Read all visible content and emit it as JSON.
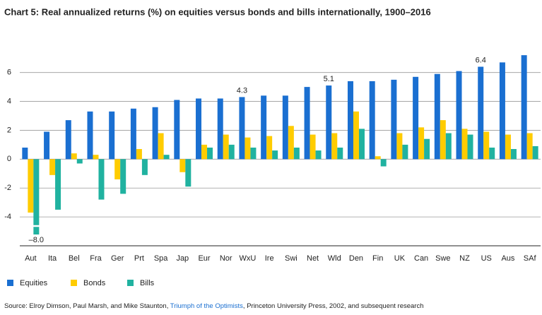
{
  "chart_data": {
    "type": "bar",
    "title": "Chart 5: Real annualized returns (%) on equities versus bonds and bills internationally, 1900–2016",
    "categories": [
      "Aut",
      "Ita",
      "Bel",
      "Fra",
      "Ger",
      "Prt",
      "Spa",
      "Jap",
      "Eur",
      "Nor",
      "WxU",
      "Ire",
      "Swi",
      "Net",
      "Wld",
      "Den",
      "Fin",
      "UK",
      "Can",
      "Swe",
      "NZ",
      "US",
      "Aus",
      "SAf"
    ],
    "series": [
      {
        "name": "Equities",
        "color": "#1a6fd1",
        "values": [
          0.8,
          1.9,
          2.7,
          3.3,
          3.3,
          3.5,
          3.6,
          4.1,
          4.2,
          4.2,
          4.3,
          4.4,
          4.4,
          5.0,
          5.1,
          5.4,
          5.4,
          5.5,
          5.7,
          5.9,
          6.1,
          6.4,
          6.7,
          7.2
        ],
        "value_labels": [
          null,
          null,
          null,
          null,
          null,
          null,
          null,
          null,
          null,
          null,
          "4.3",
          null,
          null,
          null,
          "5.1",
          null,
          null,
          null,
          null,
          null,
          null,
          "6.4",
          null,
          null
        ]
      },
      {
        "name": "Bonds",
        "color": "#ffcc00",
        "values": [
          -3.7,
          -1.1,
          0.4,
          0.3,
          -1.4,
          0.7,
          1.8,
          -0.9,
          1.0,
          1.7,
          1.5,
          1.6,
          2.3,
          1.7,
          1.8,
          3.3,
          0.2,
          1.8,
          2.2,
          2.7,
          2.1,
          1.9,
          1.7,
          1.8
        ]
      },
      {
        "name": "Bills",
        "color": "#20b2a0",
        "values": [
          -8.0,
          -3.5,
          -0.3,
          -2.8,
          -2.4,
          -1.1,
          0.3,
          -1.9,
          0.8,
          1.0,
          0.8,
          0.6,
          0.8,
          0.6,
          0.8,
          2.1,
          -0.5,
          1.0,
          1.4,
          1.8,
          1.7,
          0.8,
          0.7,
          0.9
        ],
        "value_labels": [
          "–8.0",
          null,
          null,
          null,
          null,
          null,
          null,
          null,
          null,
          null,
          null,
          null,
          null,
          null,
          null,
          null,
          null,
          null,
          null,
          null,
          null,
          null,
          null,
          null
        ]
      }
    ],
    "ylim": [
      -6,
      7.5
    ],
    "yticks": [
      -4,
      -2,
      0,
      2,
      4,
      6
    ],
    "grid": true,
    "legend": "bottom",
    "source": {
      "before": "Source: Elroy Dimson, Paul Marsh, and Mike Staunton, ",
      "link": "Triumph of the Optimists",
      "after": ", Princeton University Press, 2002, and subsequent research"
    }
  }
}
